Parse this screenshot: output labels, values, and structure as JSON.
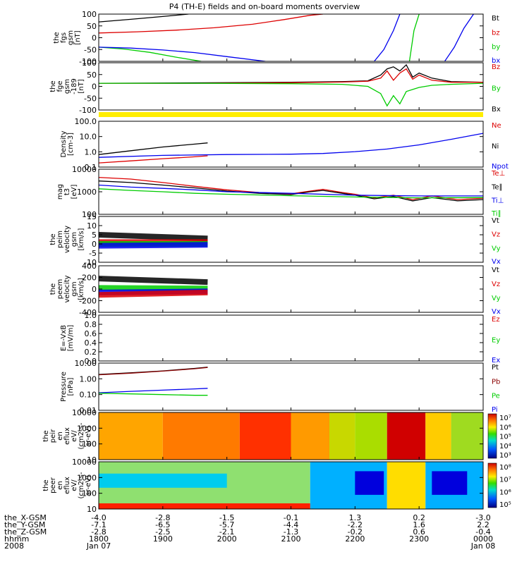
{
  "title": "P4 (TH-E) fields and on-board moments overview",
  "colors": {
    "black": "#000000",
    "red": "#dd0000",
    "green": "#00cc00",
    "blue": "#0000ee",
    "dark_red": "#8b0000",
    "yellow": "#ffee00"
  },
  "chart_data": [
    {
      "type": "line",
      "panel": "fgs",
      "ylabel": [
        "the",
        "fgs",
        "gsm",
        "[nT]"
      ],
      "ylim": [
        -100,
        100
      ],
      "ytick_labels": [
        "100",
        "50",
        "0",
        "-50",
        "-100"
      ],
      "legend": [
        {
          "label": "Bt",
          "color": "#000000"
        },
        {
          "label": "bz",
          "color": "#dd0000"
        },
        {
          "label": "by",
          "color": "#00cc00"
        },
        {
          "label": "bx",
          "color": "#0000ee"
        }
      ],
      "series": [
        {
          "name": "Bt",
          "color": "#000000",
          "x": [
            18.0,
            18.5,
            19.0,
            19.4
          ],
          "y": [
            67,
            78,
            90,
            100
          ]
        },
        {
          "name": "bz",
          "color": "#dd0000",
          "x": [
            18.0,
            18.6,
            19.2,
            19.8,
            20.4,
            20.9,
            21.3,
            21.5
          ],
          "y": [
            20,
            25,
            32,
            42,
            57,
            77,
            95,
            100
          ]
        },
        {
          "name": "by",
          "color": "#00cc00",
          "x": [
            18.0,
            18.4,
            18.8,
            19.2,
            19.6
          ],
          "y": [
            -40,
            -48,
            -62,
            -82,
            -100
          ]
        },
        {
          "name": "bx",
          "color": "#0000ee",
          "x": [
            18.0,
            18.5,
            19.0,
            19.5,
            20.0,
            20.6
          ],
          "y": [
            -40,
            -44,
            -52,
            -63,
            -80,
            -100
          ]
        },
        {
          "name": "bx",
          "color": "#0000ee",
          "x": [
            22.3,
            22.45,
            22.6,
            22.7
          ],
          "y": [
            -100,
            -50,
            30,
            100
          ]
        },
        {
          "name": "by",
          "color": "#00cc00",
          "x": [
            22.85,
            22.92,
            23.0
          ],
          "y": [
            -100,
            30,
            100
          ]
        },
        {
          "name": "bx",
          "color": "#0000ee",
          "x": [
            23.4,
            23.55,
            23.7,
            23.85
          ],
          "y": [
            -100,
            -40,
            40,
            100
          ]
        }
      ]
    },
    {
      "type": "line",
      "panel": "fge",
      "ylabel": [
        "the",
        "fge",
        "gsm",
        "-189",
        "[nT]"
      ],
      "ylim": [
        -130,
        100
      ],
      "ytick_labels": [
        "100",
        "50",
        "0",
        "-50",
        "-100"
      ],
      "legend": [
        {
          "label": "Bz",
          "color": "#dd0000"
        },
        {
          "label": "By",
          "color": "#00cc00"
        },
        {
          "label": "Bx",
          "color": "#000000"
        }
      ],
      "series": [
        {
          "name": "Bt",
          "color": "#000000",
          "x": [
            18.0,
            19.5,
            21.0,
            21.8,
            22.2,
            22.4,
            22.5,
            22.6,
            22.7,
            22.8,
            22.9,
            23.0,
            23.2,
            23.5,
            24.0
          ],
          "y": [
            0,
            2,
            5,
            8,
            12,
            40,
            70,
            80,
            60,
            90,
            30,
            50,
            25,
            8,
            5
          ]
        },
        {
          "name": "Bz",
          "color": "#dd0000",
          "x": [
            18.0,
            19.5,
            21.0,
            21.8,
            22.2,
            22.4,
            22.5,
            22.6,
            22.7,
            22.8,
            22.9,
            23.0,
            23.2,
            23.5,
            24.0
          ],
          "y": [
            0,
            0,
            3,
            6,
            10,
            25,
            60,
            15,
            50,
            70,
            20,
            40,
            15,
            5,
            5
          ]
        },
        {
          "name": "By",
          "color": "#00cc00",
          "x": [
            18.0,
            19.5,
            21.0,
            21.8,
            22.2,
            22.4,
            22.5,
            22.6,
            22.7,
            22.8,
            22.9,
            23.0,
            23.2,
            23.5,
            24.0
          ],
          "y": [
            0,
            0,
            -2,
            -5,
            -15,
            -50,
            -110,
            -60,
            -100,
            -40,
            -30,
            -20,
            -10,
            -5,
            0
          ]
        }
      ]
    },
    {
      "type": "line",
      "panel": "density",
      "ylabel": [
        "Density",
        "[cm-3]"
      ],
      "log_scale": true,
      "ylim": [
        0.1,
        200
      ],
      "ytick_labels": [
        "100.0",
        "10.0",
        "1.0",
        "0.1"
      ],
      "legend": [
        {
          "label": "Ne",
          "color": "#dd0000"
        },
        {
          "label": "Ni",
          "color": "#000000"
        },
        {
          "label": "Npot",
          "color": "#0000ee"
        }
      ],
      "series": [
        {
          "name": "Ni",
          "color": "#000000",
          "x": [
            18.0,
            18.5,
            19.0,
            19.5,
            19.7
          ],
          "y": [
            0.8,
            1.5,
            2.8,
            4.5,
            5.5
          ]
        },
        {
          "name": "Ne",
          "color": "#dd0000",
          "x": [
            18.0,
            18.5,
            19.0,
            19.5,
            19.7
          ],
          "y": [
            0.2,
            0.28,
            0.4,
            0.55,
            0.65
          ]
        },
        {
          "name": "Npot",
          "color": "#0000ee",
          "x": [
            18.0,
            19.0,
            20.0,
            21.0,
            21.5,
            22.0,
            22.5,
            23.0,
            23.5,
            24.0
          ],
          "y": [
            0.5,
            0.7,
            0.8,
            0.85,
            0.95,
            1.3,
            2.0,
            4.0,
            10.0,
            27.0
          ]
        }
      ]
    },
    {
      "type": "line",
      "panel": "temperature",
      "ylabel": [
        "mag",
        "t3",
        "[eV]"
      ],
      "log_scale": true,
      "ylim": [
        30,
        10000
      ],
      "ytick_labels": [
        "10000",
        "1000",
        "100"
      ],
      "legend": [
        {
          "label": "Te⊥",
          "color": "#dd0000"
        },
        {
          "label": "Te∥",
          "color": "#000000"
        },
        {
          "label": "Ti⊥",
          "color": "#0000ee"
        },
        {
          "label": "Ti∥",
          "color": "#00cc00"
        }
      ],
      "series": [
        {
          "name": "Te⊥",
          "color": "#dd0000",
          "x": [
            18.0,
            18.5,
            19.0,
            19.5,
            20.0,
            20.5,
            21.0,
            21.3,
            21.5,
            21.8,
            22.0,
            22.3,
            22.6,
            22.9,
            23.2,
            23.6,
            24.0
          ],
          "y": [
            3500,
            2800,
            1800,
            1100,
            700,
            500,
            420,
            600,
            750,
            500,
            400,
            250,
            350,
            200,
            320,
            200,
            240
          ]
        },
        {
          "name": "Te∥",
          "color": "#000000",
          "x": [
            18.0,
            18.5,
            19.0,
            19.5,
            20.0,
            20.5,
            21.0,
            21.3,
            21.5,
            21.8,
            22.0,
            22.3,
            22.6,
            22.9,
            23.2,
            23.6,
            24.0
          ],
          "y": [
            2200,
            1800,
            1300,
            900,
            600,
            450,
            380,
            550,
            650,
            450,
            350,
            220,
            300,
            170,
            260,
            170,
            200
          ]
        },
        {
          "name": "Ti⊥",
          "color": "#0000ee",
          "x": [
            18.0,
            18.5,
            19.0,
            19.5,
            20.0,
            21.0,
            22.0,
            23.0,
            24.0
          ],
          "y": [
            1300,
            1000,
            850,
            700,
            550,
            450,
            350,
            320,
            320
          ]
        },
        {
          "name": "Ti∥",
          "color": "#00cc00",
          "x": [
            18.0,
            18.5,
            19.0,
            19.5,
            20.0,
            21.0,
            22.0,
            23.0,
            24.0
          ],
          "y": [
            800,
            650,
            550,
            450,
            400,
            330,
            280,
            250,
            260
          ]
        }
      ]
    },
    {
      "type": "line",
      "panel": "velocity_small",
      "ylabel": [
        "the",
        "peim",
        "velocity",
        "gsm",
        "[km/s]"
      ],
      "ylim": [
        -10,
        15
      ],
      "ytick_labels": [
        "15",
        "10",
        "5",
        "0",
        "-5",
        "-10"
      ],
      "legend": [
        {
          "label": "Vt",
          "color": "#000000"
        },
        {
          "label": "Vz",
          "color": "#dd0000"
        },
        {
          "label": "Vy",
          "color": "#00cc00"
        },
        {
          "label": "Vx",
          "color": "#0000ee"
        }
      ],
      "series": [
        {
          "name": "Vt",
          "color": "#000000",
          "x": [
            18.0,
            19.7
          ],
          "y": [
            5,
            3
          ]
        },
        {
          "name": "Vz",
          "color": "#dd0000",
          "x": [
            18.0,
            19.7
          ],
          "y": [
            1,
            1
          ]
        },
        {
          "name": "Vy",
          "color": "#00cc00",
          "x": [
            18.0,
            19.7
          ],
          "y": [
            0,
            0
          ]
        },
        {
          "name": "Vx",
          "color": "#0000ee",
          "x": [
            18.0,
            19.7
          ],
          "y": [
            -1,
            -0.5
          ]
        }
      ]
    },
    {
      "type": "line",
      "panel": "velocity_large",
      "ylabel": [
        "the",
        "peem",
        "velocity",
        "gsm",
        "[km/s]"
      ],
      "ylim": [
        -400,
        400
      ],
      "ytick_labels": [
        "400",
        "200",
        "0",
        "-200",
        "-400"
      ],
      "legend": [
        {
          "label": "Vt",
          "color": "#000000"
        },
        {
          "label": "Vz",
          "color": "#dd0000"
        },
        {
          "label": "Vy",
          "color": "#00cc00"
        },
        {
          "label": "Vx",
          "color": "#0000ee"
        }
      ],
      "series": [
        {
          "name": "Vt",
          "color": "#000000",
          "x": [
            18.0,
            19.7
          ],
          "y": [
            180,
            120
          ]
        },
        {
          "name": "Vy",
          "color": "#00cc00",
          "x": [
            18.0,
            19.7
          ],
          "y": [
            20,
            10
          ]
        },
        {
          "name": "Vx",
          "color": "#0000ee",
          "x": [
            18.0,
            19.7
          ],
          "y": [
            -60,
            -40
          ]
        },
        {
          "name": "Vz",
          "color": "#dd0000",
          "x": [
            18.0,
            19.7
          ],
          "y": [
            -100,
            -60
          ]
        }
      ]
    },
    {
      "type": "line",
      "panel": "efield",
      "ylabel": [
        "E=-VxB",
        "[mV/m]"
      ],
      "ylim": [
        0,
        1
      ],
      "ytick_labels": [
        "1.0",
        "0.8",
        "0.6",
        "0.4",
        "0.2",
        "0.0"
      ],
      "legend": [
        {
          "label": "Ez",
          "color": "#dd0000"
        },
        {
          "label": "Ey",
          "color": "#00cc00"
        },
        {
          "label": "Ex",
          "color": "#0000ee"
        }
      ],
      "series": []
    },
    {
      "type": "line",
      "panel": "pressure",
      "ylabel": [
        "Pressure",
        "[nPa]"
      ],
      "log_scale": true,
      "ylim": [
        0.01,
        10
      ],
      "ytick_labels": [
        "10.00",
        "1.00",
        "0.10",
        "0.01"
      ],
      "legend": [
        {
          "label": "Pt",
          "color": "#000000"
        },
        {
          "label": "Pb",
          "color": "#8b0000"
        },
        {
          "label": "Pe",
          "color": "#00cc00"
        },
        {
          "label": "Pi",
          "color": "#0000ee"
        }
      ],
      "series": [
        {
          "name": "Pt",
          "color": "#000000",
          "x": [
            18.0,
            18.5,
            19.0,
            19.5,
            19.7
          ],
          "y": [
            1.9,
            2.4,
            3.2,
            4.6,
            5.5
          ]
        },
        {
          "name": "Pb",
          "color": "#8b0000",
          "x": [
            18.0,
            18.5,
            19.0,
            19.5,
            19.7
          ],
          "y": [
            1.8,
            2.3,
            3.1,
            4.4,
            5.3
          ]
        },
        {
          "name": "Pi",
          "color": "#0000ee",
          "x": [
            18.0,
            18.5,
            19.0,
            19.5,
            19.7
          ],
          "y": [
            0.13,
            0.16,
            0.19,
            0.23,
            0.25
          ]
        },
        {
          "name": "Pe",
          "color": "#00cc00",
          "x": [
            18.0,
            18.5,
            19.0,
            19.5,
            19.7
          ],
          "y": [
            0.12,
            0.11,
            0.1,
            0.09,
            0.09
          ]
        }
      ]
    },
    {
      "type": "heatmap",
      "panel": "peir_eflux",
      "ylabel": [
        "the",
        "peir",
        "en",
        "eflux",
        "eV/",
        "(cm2-s-",
        "sr-eV)"
      ],
      "ytick_labels": [
        "10000",
        "1000",
        "100",
        "10"
      ],
      "colorbar_labels": [
        "10⁷",
        "10⁶",
        "10⁵",
        "10⁴",
        "10³"
      ],
      "columns": [
        {
          "x0": 18.0,
          "x1": 19.0,
          "color": "#ffa500"
        },
        {
          "x0": 19.0,
          "x1": 20.2,
          "color": "#ff7a00"
        },
        {
          "x0": 20.2,
          "x1": 21.0,
          "color": "#ff3000"
        },
        {
          "x0": 21.0,
          "x1": 21.6,
          "color": "#ff9a00"
        },
        {
          "x0": 21.6,
          "x1": 22.0,
          "color": "#c8d800"
        },
        {
          "x0": 22.0,
          "x1": 22.5,
          "color": "#aadd00"
        },
        {
          "x0": 22.5,
          "x1": 23.1,
          "color": "#d00000"
        },
        {
          "x0": 23.1,
          "x1": 23.5,
          "color": "#ffcc00"
        },
        {
          "x0": 23.5,
          "x1": 24.0,
          "color": "#9fdb20"
        }
      ]
    },
    {
      "type": "heatmap",
      "panel": "peer_eflux",
      "ylabel": [
        "the",
        "peer",
        "en",
        "eflux",
        "eV/",
        "(cm2-s-",
        "sr-eV)"
      ],
      "ytick_labels": [
        "10000",
        "1000",
        "100",
        "10"
      ],
      "colorbar_labels": [
        "10⁸",
        "10⁷",
        "10⁶",
        "10⁵"
      ],
      "columns": [
        {
          "x0": 18.0,
          "x1": 21.3,
          "color": "#8fe070"
        },
        {
          "x0": 21.3,
          "x1": 22.5,
          "color": "#00b0ff"
        },
        {
          "x0": 22.5,
          "x1": 23.1,
          "color": "#ffdd00"
        },
        {
          "x0": 23.1,
          "x1": 24.0,
          "color": "#00b0ff"
        }
      ],
      "patches": [
        {
          "x0": 18.0,
          "x1": 20.0,
          "y0": 0.45,
          "y1": 0.75,
          "color": "#00ccee"
        },
        {
          "x0": 22.0,
          "x1": 22.45,
          "y0": 0.3,
          "y1": 0.8,
          "color": "#0000dd"
        },
        {
          "x0": 23.2,
          "x1": 23.75,
          "y0": 0.3,
          "y1": 0.8,
          "color": "#0000dd"
        },
        {
          "x0": 18.0,
          "x1": 21.3,
          "y0": 0.0,
          "y1": 0.12,
          "color": "#ff2000"
        }
      ]
    }
  ],
  "time_axis": {
    "row_labels": [
      "the_X-GSM",
      "the_Y-GSM",
      "the_Z-GSM",
      "hhmm",
      "2008"
    ],
    "ticks": [
      {
        "x": 18.0,
        "rows": [
          "-4.0",
          "-7.1",
          "-2.8",
          "1800",
          "Jan 07"
        ]
      },
      {
        "x": 19.0,
        "rows": [
          "-2.8",
          "-6.5",
          "-2.5",
          "1900",
          ""
        ]
      },
      {
        "x": 20.0,
        "rows": [
          "-1.5",
          "-5.7",
          "-2.1",
          "2000",
          ""
        ]
      },
      {
        "x": 21.0,
        "rows": [
          "-0.1",
          "-4.4",
          "-1.3",
          "2100",
          ""
        ]
      },
      {
        "x": 22.0,
        "rows": [
          "1.3",
          "-2.2",
          "-0.2",
          "2200",
          ""
        ]
      },
      {
        "x": 23.0,
        "rows": [
          "0.2",
          "1.6",
          "0.6",
          "2300",
          ""
        ]
      },
      {
        "x": 24.0,
        "rows": [
          "-3.0",
          "2.2",
          "-0.4",
          "0000",
          "Jan 08"
        ]
      }
    ]
  }
}
